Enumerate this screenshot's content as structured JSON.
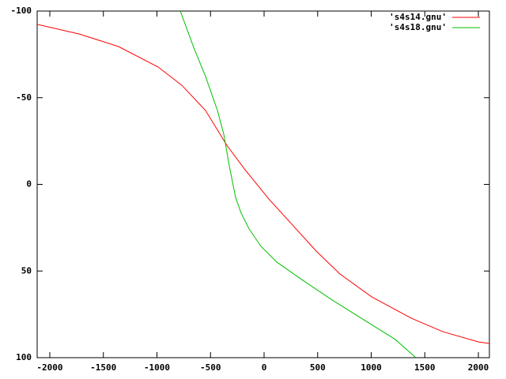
{
  "chart_data": {
    "type": "line",
    "series": [
      {
        "name": "'s4s14.gnu'",
        "color": "#ff0000",
        "x": [
          -2118,
          -1727,
          -1358,
          -989,
          -768,
          -546,
          -347,
          -177,
          44,
          266,
          487,
          708,
          1004,
          1373,
          1668,
          2000,
          2103
        ],
        "values": [
          -92.3,
          -86.8,
          -79.5,
          -67.7,
          -57.2,
          -42.6,
          -22.5,
          -8.4,
          8.4,
          23.5,
          38.5,
          51.7,
          64.9,
          77.2,
          85,
          90.9,
          91.8
        ]
      },
      {
        "name": "'s4s18.gnu'",
        "color": "#00c000",
        "x": [
          -782,
          -657,
          -546,
          -435,
          -376,
          -325,
          -266,
          -214,
          -140,
          -30,
          118,
          339,
          635,
          930,
          1225,
          1417
        ],
        "values": [
          -100,
          -79,
          -62.2,
          -42.6,
          -28.9,
          -10.7,
          7.5,
          16.6,
          25.7,
          35.7,
          44.8,
          54.4,
          66.7,
          78.1,
          89.5,
          100
        ]
      }
    ],
    "xlim": [
      -2118,
      2103
    ],
    "xticks": [
      -2000,
      -1500,
      -1000,
      -500,
      0,
      500,
      1000,
      1500,
      2000
    ],
    "ylim": [
      -100,
      100
    ],
    "yticks": [
      -100,
      -50,
      0,
      50,
      100
    ],
    "y_reversed": true,
    "legend": "top-right"
  }
}
